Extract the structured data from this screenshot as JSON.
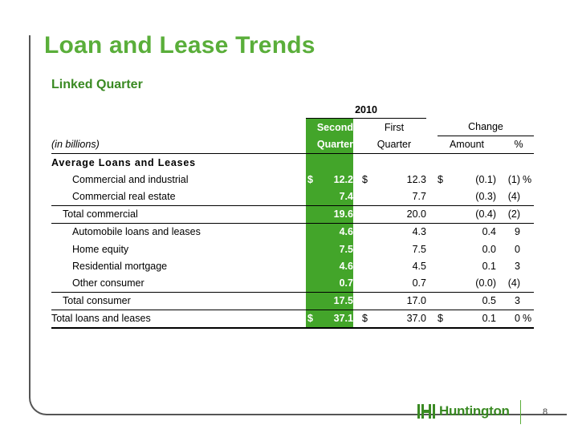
{
  "title": "Loan and Lease Trends",
  "subtitle": "Linked Quarter",
  "header": {
    "year": "2010",
    "units": "(in billions)",
    "col_q2_line1": "Second",
    "col_q2_line2": "Quarter",
    "col_q1_line1": "First",
    "col_q1_line2": "Quarter",
    "change": "Change",
    "amount": "Amount",
    "pct": "%"
  },
  "section_title": "Average Loans and Leases",
  "rows": [
    {
      "label": "Commercial and industrial",
      "d1": "$",
      "q2": "12.2",
      "d2": "$",
      "q1": "12.3",
      "d3": "$",
      "amt": "(0.1)",
      "pct": "(1)",
      "pp": "%"
    },
    {
      "label": "Commercial real estate",
      "d1": "",
      "q2": "7.4",
      "d2": "",
      "q1": "7.7",
      "d3": "",
      "amt": "(0.3)",
      "pct": "(4)",
      "pp": ""
    },
    {
      "label": "Total commercial",
      "d1": "",
      "q2": "19.6",
      "d2": "",
      "q1": "20.0",
      "d3": "",
      "amt": "(0.4)",
      "pct": "(2)",
      "pp": ""
    },
    {
      "label": "Automobile loans and leases",
      "d1": "",
      "q2": "4.6",
      "d2": "",
      "q1": "4.3",
      "d3": "",
      "amt": "0.4",
      "pct": "9",
      "pp": ""
    },
    {
      "label": "Home equity",
      "d1": "",
      "q2": "7.5",
      "d2": "",
      "q1": "7.5",
      "d3": "",
      "amt": "0.0",
      "pct": "0",
      "pp": ""
    },
    {
      "label": "Residential mortgage",
      "d1": "",
      "q2": "4.6",
      "d2": "",
      "q1": "4.5",
      "d3": "",
      "amt": "0.1",
      "pct": "3",
      "pp": ""
    },
    {
      "label": "Other consumer",
      "d1": "",
      "q2": "0.7",
      "d2": "",
      "q1": "0.7",
      "d3": "",
      "amt": "(0.0)",
      "pct": "(4)",
      "pp": ""
    },
    {
      "label": "Total consumer",
      "d1": "",
      "q2": "17.5",
      "d2": "",
      "q1": "17.0",
      "d3": "",
      "amt": "0.5",
      "pct": "3",
      "pp": ""
    },
    {
      "label": "Total loans and leases",
      "d1": "$",
      "q2": "37.1",
      "d2": "$",
      "q1": "37.0",
      "d3": "$",
      "amt": "0.1",
      "pct": "0",
      "pp": "%"
    }
  ],
  "footer": {
    "logo_text": "Huntington",
    "page_number": "8"
  },
  "colors": {
    "title_green": "#5aae3a",
    "highlight_green": "#43a52a",
    "subtitle_green": "#3a8a23"
  }
}
